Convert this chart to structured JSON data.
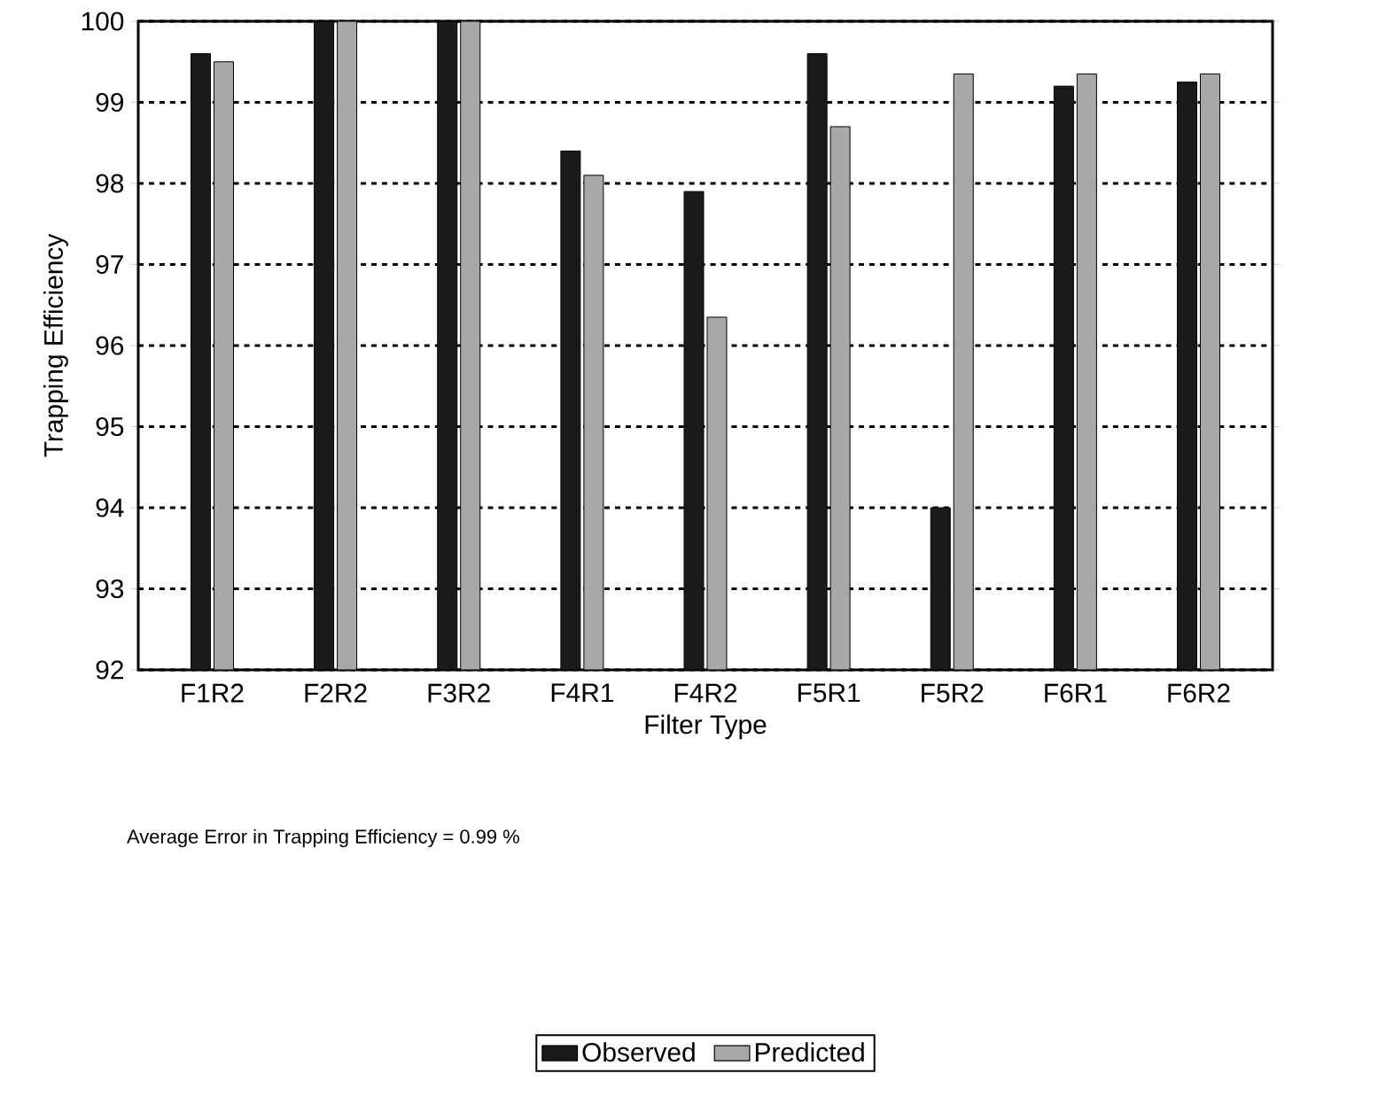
{
  "chart_data": {
    "type": "bar",
    "xlabel": "Filter Type",
    "ylabel": "Trapping Efficiency",
    "categories": [
      "F1R2",
      "F2R2",
      "F3R2",
      "F4R1",
      "F4R2",
      "F5R1",
      "F5R2",
      "F6R1",
      "F6R2"
    ],
    "series": [
      {
        "name": "Observed",
        "color": "#1a1a1a",
        "values": [
          99.6,
          100,
          100,
          98.4,
          97.9,
          99.6,
          94.0,
          99.2,
          99.25
        ]
      },
      {
        "name": "Predicted",
        "color": "#a8a8a8",
        "values": [
          99.5,
          100,
          100,
          98.1,
          96.35,
          98.7,
          99.35,
          99.35,
          99.35
        ]
      }
    ],
    "ylim": [
      92,
      100
    ],
    "yticks": [
      92,
      93,
      94,
      95,
      96,
      97,
      98,
      99,
      100
    ],
    "grid": "y",
    "legend": "bottom",
    "annotations": [
      "Average Error in Trapping Efficiency = 0.99 %"
    ]
  }
}
